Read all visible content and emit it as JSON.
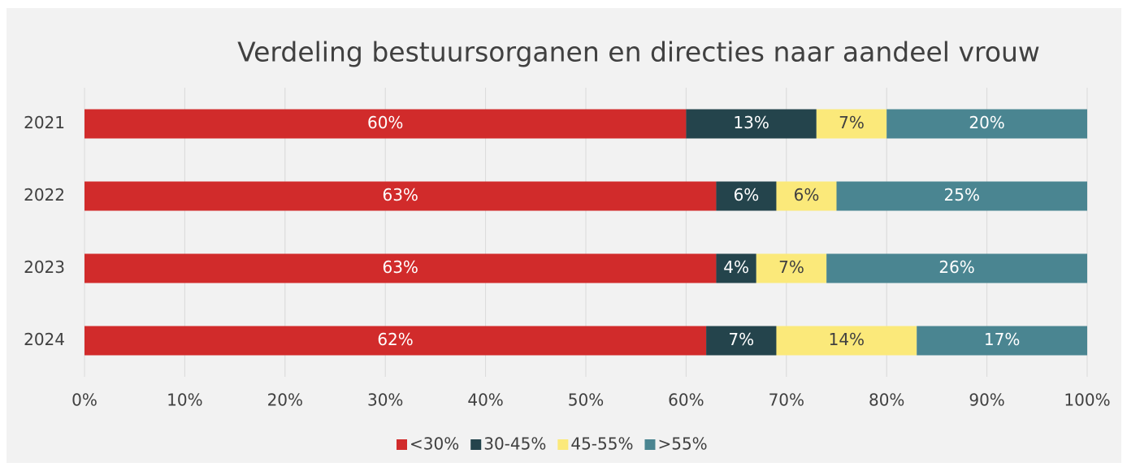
{
  "chart_data": {
    "type": "stacked-bar-horizontal",
    "title": "Verdeling bestuursorganen en directies naar aandeel vrouw",
    "categories": [
      "2021",
      "2022",
      "2023",
      "2024"
    ],
    "series": [
      {
        "name": "<30%",
        "color": "#d12b2b",
        "values": [
          60,
          63,
          63,
          62
        ],
        "value_labels": [
          "60%",
          "63%",
          "63%",
          "62%"
        ]
      },
      {
        "name": "30-45%",
        "color": "#24444c",
        "values": [
          13,
          6,
          4,
          7
        ],
        "value_labels": [
          "13%",
          "6%",
          "4%",
          "7%"
        ]
      },
      {
        "name": "45-55%",
        "color": "#fbe97a",
        "values": [
          7,
          6,
          7,
          14
        ],
        "value_labels": [
          "7%",
          "6%",
          "7%",
          "14%"
        ]
      },
      {
        "name": ">55%",
        "color": "#4a8591",
        "values": [
          20,
          25,
          26,
          17
        ],
        "value_labels": [
          "20%",
          "25%",
          "26%",
          "17%"
        ]
      }
    ],
    "xlim": [
      0,
      100
    ],
    "xticks": [
      {
        "value": 0,
        "label": "0%"
      },
      {
        "value": 10,
        "label": "10%"
      },
      {
        "value": 20,
        "label": "20%"
      },
      {
        "value": 30,
        "label": "30%"
      },
      {
        "value": 40,
        "label": "40%"
      },
      {
        "value": 50,
        "label": "50%"
      },
      {
        "value": 60,
        "label": "60%"
      },
      {
        "value": 70,
        "label": "70%"
      },
      {
        "value": 80,
        "label": "80%"
      },
      {
        "value": 90,
        "label": "90%"
      },
      {
        "value": 100,
        "label": "100%"
      }
    ],
    "grid": true,
    "legend": "bottom"
  }
}
